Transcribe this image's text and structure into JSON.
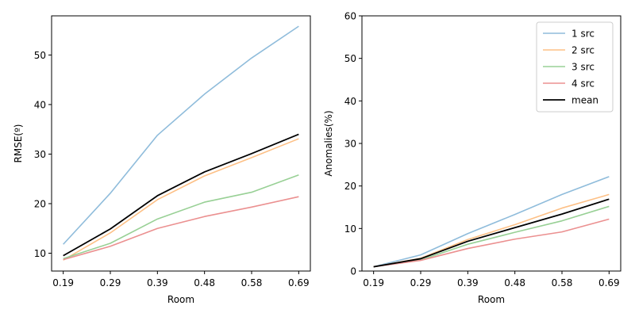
{
  "chart_data": [
    {
      "type": "line",
      "xlabel": "Room",
      "ylabel": "RMSE(º)",
      "categories": [
        "0.19",
        "0.29",
        "0.39",
        "0.48",
        "0.58",
        "0.69"
      ],
      "ylim": [
        6.4,
        57.9
      ],
      "yticks": [
        10,
        20,
        30,
        40,
        50
      ],
      "series": [
        {
          "name": "1 src",
          "color": "#8fbcdb",
          "values": [
            11.8,
            22.1,
            33.8,
            42.1,
            49.4,
            55.8
          ]
        },
        {
          "name": "2 src",
          "color": "#fdc086",
          "values": [
            8.6,
            14.1,
            20.8,
            25.6,
            29.3,
            33.1
          ]
        },
        {
          "name": "3 src",
          "color": "#98d095",
          "values": [
            8.9,
            12.0,
            16.9,
            20.3,
            22.3,
            25.8
          ]
        },
        {
          "name": "4 src",
          "color": "#eb9090",
          "values": [
            8.7,
            11.4,
            15.0,
            17.4,
            19.3,
            21.4
          ]
        },
        {
          "name": "mean",
          "color": "#000000",
          "values": [
            9.5,
            14.9,
            21.6,
            26.4,
            30.1,
            34.0
          ]
        }
      ],
      "legend": false
    },
    {
      "type": "line",
      "xlabel": "Room",
      "ylabel": "Anomalies(%)",
      "categories": [
        "0.19",
        "0.29",
        "0.39",
        "0.48",
        "0.58",
        "0.69"
      ],
      "ylim": [
        0,
        60
      ],
      "yticks": [
        0,
        10,
        20,
        30,
        40,
        50,
        60
      ],
      "series": [
        {
          "name": "1 src",
          "color": "#8fbcdb",
          "values": [
            1.0,
            3.8,
            8.8,
            13.3,
            18.0,
            22.2
          ]
        },
        {
          "name": "2 src",
          "color": "#fdc086",
          "values": [
            1.0,
            3.0,
            7.4,
            10.9,
            14.8,
            18.0
          ]
        },
        {
          "name": "3 src",
          "color": "#98d095",
          "values": [
            1.0,
            2.6,
            6.3,
            9.1,
            11.8,
            15.2
          ]
        },
        {
          "name": "4 src",
          "color": "#eb9090",
          "values": [
            1.0,
            2.5,
            5.3,
            7.5,
            9.2,
            12.2
          ]
        },
        {
          "name": "mean",
          "color": "#000000",
          "values": [
            1.0,
            2.9,
            7.0,
            10.2,
            13.4,
            16.9
          ]
        }
      ],
      "legend": true,
      "legend_position": "top-right"
    }
  ]
}
